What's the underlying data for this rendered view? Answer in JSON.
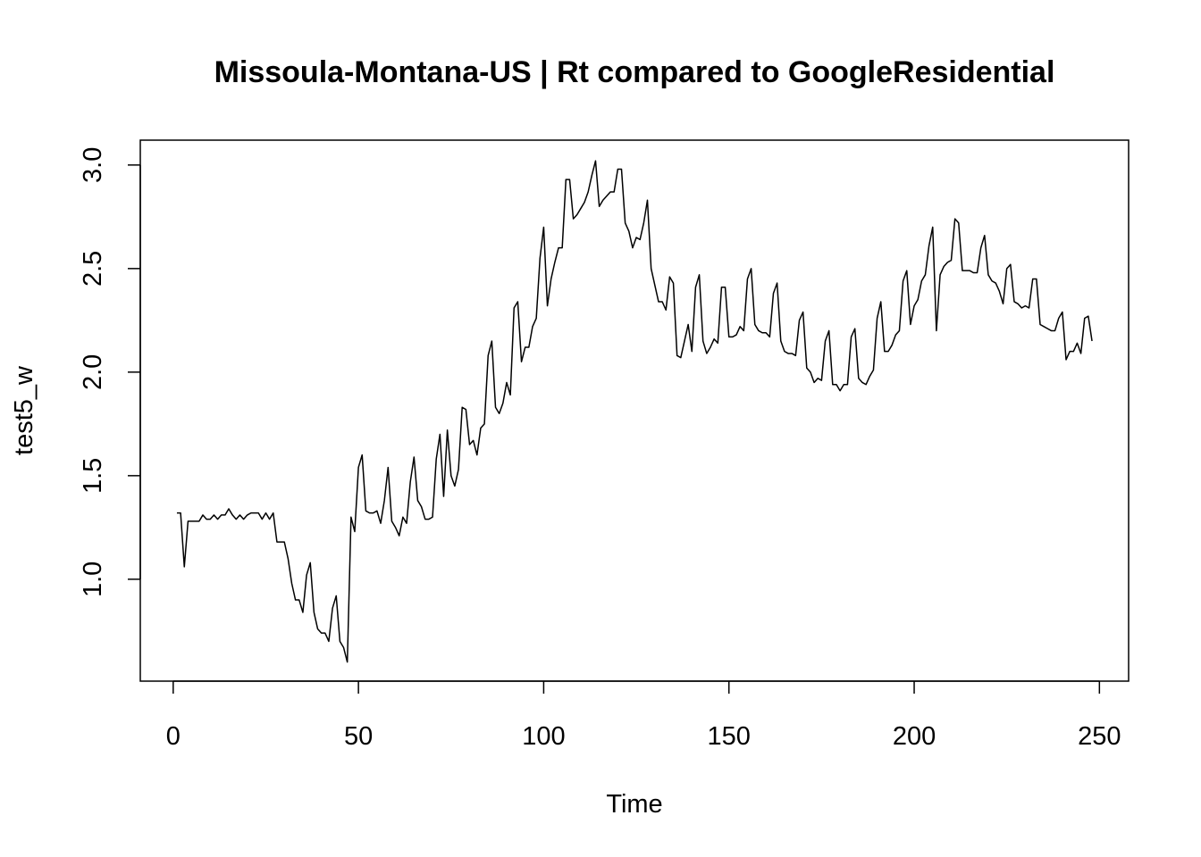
{
  "chart_data": {
    "type": "line",
    "title": "Missoula-Montana-US | Rt compared to GoogleResidential",
    "x_label": "Time",
    "y_label": "test5_w",
    "color": "#000000",
    "xlim": [
      -8.88,
      257.88
    ],
    "xticks": [
      0,
      50,
      100,
      150,
      200,
      250
    ],
    "ylim": [
      0.508,
      3.12
    ],
    "yticks": [
      {
        "value": 1.0,
        "label": "1.0"
      },
      1.5,
      {
        "value": 2.0,
        "label": "2.0"
      },
      2.5,
      {
        "value": 3.0,
        "label": "3.0"
      }
    ],
    "x": [
      1,
      2,
      3,
      4,
      5,
      6,
      7,
      8,
      9,
      10,
      11,
      12,
      13,
      14,
      15,
      16,
      17,
      18,
      19,
      20,
      21,
      22,
      23,
      24,
      25,
      26,
      27,
      28,
      29,
      30,
      31,
      32,
      33,
      34,
      35,
      36,
      37,
      38,
      39,
      40,
      41,
      42,
      43,
      44,
      45,
      46,
      47,
      48,
      49,
      50,
      51,
      52,
      53,
      54,
      55,
      56,
      57,
      58,
      59,
      60,
      61,
      62,
      63,
      64,
      65,
      66,
      67,
      68,
      69,
      70,
      71,
      72,
      73,
      74,
      75,
      76,
      77,
      78,
      79,
      80,
      81,
      82,
      83,
      84,
      85,
      86,
      87,
      88,
      89,
      90,
      91,
      92,
      93,
      94,
      95,
      96,
      97,
      98,
      99,
      100,
      101,
      102,
      103,
      104,
      105,
      106,
      107,
      108,
      109,
      110,
      111,
      112,
      113,
      114,
      115,
      116,
      117,
      118,
      119,
      120,
      121,
      122,
      123,
      124,
      125,
      126,
      127,
      128,
      129,
      130,
      131,
      132,
      133,
      134,
      135,
      136,
      137,
      138,
      139,
      140,
      141,
      142,
      143,
      144,
      145,
      146,
      147,
      148,
      149,
      150,
      151,
      152,
      153,
      154,
      155,
      156,
      157,
      158,
      159,
      160,
      161,
      162,
      163,
      164,
      165,
      166,
      167,
      168,
      169,
      170,
      171,
      172,
      173,
      174,
      175,
      176,
      177,
      178,
      179,
      180,
      181,
      182,
      183,
      184,
      185,
      186,
      187,
      188,
      189,
      190,
      191,
      192,
      193,
      194,
      195,
      196,
      197,
      198,
      199,
      200,
      201,
      202,
      203,
      204,
      205,
      206,
      207,
      208,
      209,
      210,
      211,
      212,
      213,
      214,
      215,
      216,
      217,
      218,
      219,
      220,
      221,
      222,
      223,
      224,
      225,
      226,
      227,
      228,
      229,
      230,
      231,
      232,
      233,
      234,
      235,
      236,
      237,
      238,
      239,
      240,
      241,
      242,
      243,
      244,
      245,
      246,
      247,
      248
    ],
    "values": [
      1.32,
      1.32,
      1.06,
      1.28,
      1.28,
      1.28,
      1.28,
      1.31,
      1.29,
      1.29,
      1.31,
      1.29,
      1.31,
      1.31,
      1.34,
      1.31,
      1.29,
      1.31,
      1.29,
      1.31,
      1.32,
      1.32,
      1.32,
      1.29,
      1.32,
      1.29,
      1.32,
      1.18,
      1.18,
      1.18,
      1.1,
      0.98,
      0.9,
      0.9,
      0.84,
      1.02,
      1.08,
      0.84,
      0.76,
      0.74,
      0.74,
      0.7,
      0.86,
      0.92,
      0.7,
      0.67,
      0.6,
      1.3,
      1.23,
      1.54,
      1.6,
      1.33,
      1.32,
      1.32,
      1.33,
      1.27,
      1.38,
      1.54,
      1.28,
      1.25,
      1.21,
      1.3,
      1.27,
      1.47,
      1.59,
      1.38,
      1.35,
      1.29,
      1.29,
      1.3,
      1.58,
      1.7,
      1.4,
      1.72,
      1.5,
      1.45,
      1.53,
      1.83,
      1.82,
      1.65,
      1.67,
      1.6,
      1.73,
      1.75,
      2.08,
      2.15,
      1.83,
      1.8,
      1.85,
      1.95,
      1.89,
      2.31,
      2.34,
      2.05,
      2.12,
      2.12,
      2.22,
      2.26,
      2.55,
      2.7,
      2.32,
      2.45,
      2.53,
      2.6,
      2.6,
      2.93,
      2.93,
      2.74,
      2.76,
      2.79,
      2.82,
      2.87,
      2.95,
      3.02,
      2.8,
      2.83,
      2.85,
      2.87,
      2.87,
      2.98,
      2.98,
      2.72,
      2.68,
      2.6,
      2.65,
      2.64,
      2.72,
      2.83,
      2.5,
      2.42,
      2.34,
      2.34,
      2.3,
      2.46,
      2.43,
      2.08,
      2.07,
      2.15,
      2.23,
      2.1,
      2.41,
      2.47,
      2.15,
      2.09,
      2.12,
      2.16,
      2.14,
      2.41,
      2.41,
      2.17,
      2.17,
      2.18,
      2.22,
      2.2,
      2.45,
      2.5,
      2.23,
      2.2,
      2.19,
      2.19,
      2.17,
      2.38,
      2.43,
      2.15,
      2.1,
      2.09,
      2.09,
      2.08,
      2.25,
      2.29,
      2.02,
      2.0,
      1.95,
      1.97,
      1.96,
      2.15,
      2.2,
      1.94,
      1.94,
      1.91,
      1.94,
      1.94,
      2.17,
      2.21,
      1.97,
      1.95,
      1.94,
      1.98,
      2.01,
      2.26,
      2.34,
      2.1,
      2.1,
      2.13,
      2.18,
      2.2,
      2.44,
      2.49,
      2.23,
      2.32,
      2.35,
      2.44,
      2.47,
      2.61,
      2.7,
      2.2,
      2.47,
      2.51,
      2.53,
      2.54,
      2.74,
      2.72,
      2.49,
      2.49,
      2.49,
      2.48,
      2.48,
      2.6,
      2.66,
      2.47,
      2.44,
      2.43,
      2.39,
      2.33,
      2.5,
      2.52,
      2.34,
      2.33,
      2.31,
      2.32,
      2.31,
      2.45,
      2.45,
      2.23,
      2.22,
      2.21,
      2.2,
      2.2,
      2.26,
      2.29,
      2.06,
      2.1,
      2.1,
      2.14,
      2.09,
      2.26,
      2.27,
      2.15
    ]
  }
}
